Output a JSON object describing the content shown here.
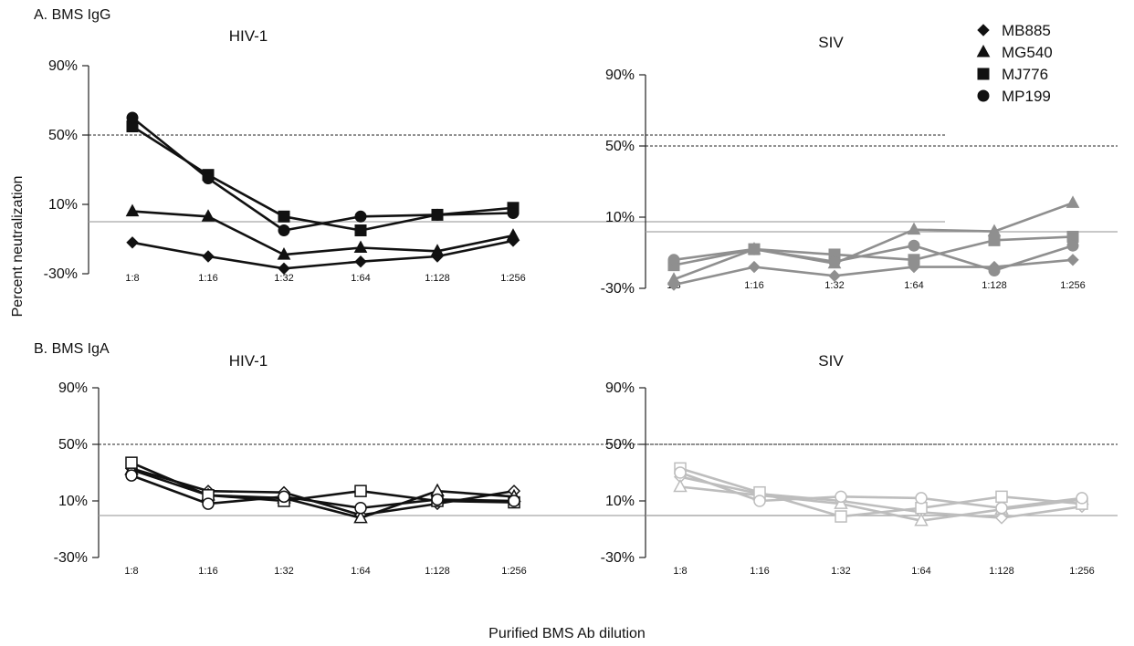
{
  "figure": {
    "ylabel": "Percent neutralization",
    "xlabel": "Purified BMS Ab dilution",
    "sections": [
      {
        "label": "A. BMS IgG"
      },
      {
        "label": "B. BMS IgA"
      }
    ]
  },
  "legend": {
    "items": [
      {
        "name": "MB885",
        "marker": "diamond"
      },
      {
        "name": "MG540",
        "marker": "triangle"
      },
      {
        "name": "MJ776",
        "marker": "square"
      },
      {
        "name": "MP199",
        "marker": "circle"
      }
    ]
  },
  "colors": {
    "igg_hiv": "#111111",
    "igg_siv": "#8f8f8f",
    "iga_hiv": "#111111",
    "iga_siv": "#bdbdbd",
    "zero_line": "#a8a8a8",
    "threshold_line": "#222222"
  },
  "chart_data": [
    {
      "type": "line",
      "title": "HIV-1",
      "section": "A. BMS IgG",
      "categories": [
        "1:8",
        "1:16",
        "1:32",
        "1:64",
        "1:128",
        "1:256"
      ],
      "y_ticks": [
        "90%",
        "50%",
        "10%",
        "-30%"
      ],
      "ylim": [
        -30,
        90
      ],
      "threshold": 50,
      "marker_fill": "filled",
      "color": "#111111",
      "series": [
        {
          "name": "MB885",
          "marker": "diamond",
          "values": [
            -12,
            -20,
            -27,
            -23,
            -20,
            -11
          ]
        },
        {
          "name": "MG540",
          "marker": "triangle",
          "values": [
            6,
            3,
            -19,
            -15,
            -17,
            -8
          ]
        },
        {
          "name": "MJ776",
          "marker": "square",
          "values": [
            55,
            27,
            3,
            -5,
            4,
            8
          ]
        },
        {
          "name": "MP199",
          "marker": "circle",
          "values": [
            60,
            25,
            -5,
            3,
            4,
            5
          ]
        }
      ]
    },
    {
      "type": "line",
      "title": "SIV",
      "section": "A. BMS IgG",
      "categories": [
        "1:8",
        "1:16",
        "1:32",
        "1:64",
        "1:128",
        "1:256"
      ],
      "y_ticks": [
        "90%",
        "50%",
        "10%",
        "-30%"
      ],
      "ylim": [
        -30,
        90
      ],
      "threshold": 50,
      "marker_fill": "filled",
      "color": "#8f8f8f",
      "series": [
        {
          "name": "MB885",
          "marker": "diamond",
          "values": [
            -28,
            -18,
            -23,
            -18,
            -18,
            -14
          ]
        },
        {
          "name": "MG540",
          "marker": "triangle",
          "values": [
            -25,
            -8,
            -16,
            3,
            2,
            18
          ]
        },
        {
          "name": "MJ776",
          "marker": "square",
          "values": [
            -17,
            -8,
            -11,
            -14,
            -3,
            -1
          ]
        },
        {
          "name": "MP199",
          "marker": "circle",
          "values": [
            -14,
            -8,
            -15,
            -6,
            -20,
            -6
          ]
        }
      ]
    },
    {
      "type": "line",
      "title": "HIV-1",
      "section": "B. BMS IgA",
      "categories": [
        "1:8",
        "1:16",
        "1:32",
        "1:64",
        "1:128",
        "1:256"
      ],
      "y_ticks": [
        "90%",
        "50%",
        "10%",
        "-30%"
      ],
      "ylim": [
        -30,
        90
      ],
      "threshold": 50,
      "marker_fill": "open",
      "color": "#111111",
      "series": [
        {
          "name": "MB885",
          "marker": "diamond",
          "values": [
            33,
            17,
            16,
            0,
            8,
            17
          ]
        },
        {
          "name": "MG540",
          "marker": "triangle",
          "values": [
            32,
            14,
            12,
            -2,
            17,
            13
          ]
        },
        {
          "name": "MJ776",
          "marker": "square",
          "values": [
            37,
            14,
            10,
            17,
            10,
            9
          ]
        },
        {
          "name": "MP199",
          "marker": "circle",
          "values": [
            28,
            8,
            13,
            5,
            11,
            10
          ]
        }
      ]
    },
    {
      "type": "line",
      "title": "SIV",
      "section": "B. BMS IgA",
      "categories": [
        "1:8",
        "1:16",
        "1:32",
        "1:64",
        "1:128",
        "1:256"
      ],
      "y_ticks": [
        "90%",
        "50%",
        "10%",
        "-30%"
      ],
      "ylim": [
        -30,
        90
      ],
      "threshold": 50,
      "marker_fill": "open",
      "color": "#bdbdbd",
      "series": [
        {
          "name": "MB885",
          "marker": "diamond",
          "values": [
            27,
            15,
            10,
            2,
            -2,
            6
          ]
        },
        {
          "name": "MG540",
          "marker": "triangle",
          "values": [
            20,
            14,
            8,
            -4,
            4,
            11
          ]
        },
        {
          "name": "MJ776",
          "marker": "square",
          "values": [
            33,
            16,
            -1,
            5,
            13,
            8
          ]
        },
        {
          "name": "MP199",
          "marker": "circle",
          "values": [
            30,
            10,
            13,
            12,
            5,
            12
          ]
        }
      ]
    }
  ]
}
